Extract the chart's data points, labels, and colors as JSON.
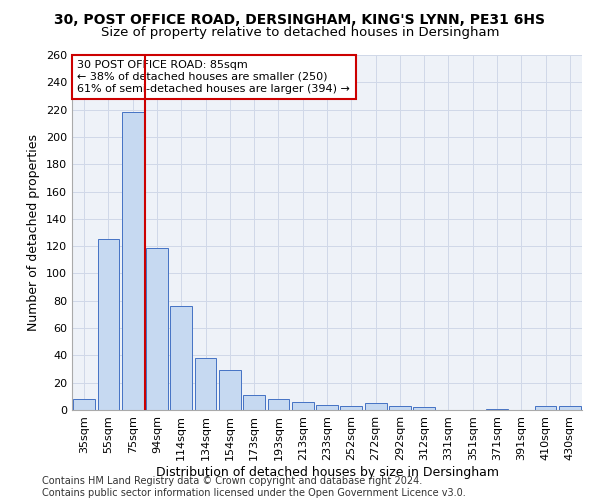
{
  "title_line1": "30, POST OFFICE ROAD, DERSINGHAM, KING'S LYNN, PE31 6HS",
  "title_line2": "Size of property relative to detached houses in Dersingham",
  "xlabel": "Distribution of detached houses by size in Dersingham",
  "ylabel": "Number of detached properties",
  "categories": [
    "35sqm",
    "55sqm",
    "75sqm",
    "94sqm",
    "114sqm",
    "134sqm",
    "154sqm",
    "173sqm",
    "193sqm",
    "213sqm",
    "233sqm",
    "252sqm",
    "272sqm",
    "292sqm",
    "312sqm",
    "331sqm",
    "351sqm",
    "371sqm",
    "391sqm",
    "410sqm",
    "430sqm"
  ],
  "values": [
    8,
    125,
    218,
    119,
    76,
    38,
    29,
    11,
    8,
    6,
    4,
    3,
    5,
    3,
    2,
    0,
    0,
    1,
    0,
    3,
    3
  ],
  "bar_color": "#c6d9f1",
  "bar_edge_color": "#4472c4",
  "vline_x": 2.5,
  "vline_color": "#cc0000",
  "annotation_text": "30 POST OFFICE ROAD: 85sqm\n← 38% of detached houses are smaller (250)\n61% of semi-detached houses are larger (394) →",
  "annotation_box_color": "#ffffff",
  "annotation_box_edge": "#cc0000",
  "ylim": [
    0,
    260
  ],
  "yticks": [
    0,
    20,
    40,
    60,
    80,
    100,
    120,
    140,
    160,
    180,
    200,
    220,
    240,
    260
  ],
  "grid_color": "#d0d8e8",
  "bg_color": "#eef2f8",
  "footer": "Contains HM Land Registry data © Crown copyright and database right 2024.\nContains public sector information licensed under the Open Government Licence v3.0.",
  "title_fontsize": 10,
  "subtitle_fontsize": 9.5,
  "xlabel_fontsize": 9,
  "ylabel_fontsize": 9,
  "tick_fontsize": 8,
  "annotation_fontsize": 8,
  "footer_fontsize": 7
}
